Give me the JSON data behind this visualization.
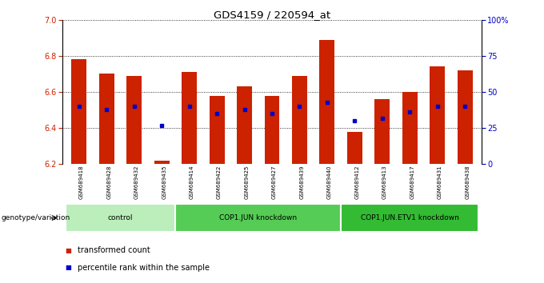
{
  "title": "GDS4159 / 220594_at",
  "samples": [
    "GSM689418",
    "GSM689428",
    "GSM689432",
    "GSM689435",
    "GSM689414",
    "GSM689422",
    "GSM689425",
    "GSM689427",
    "GSM689439",
    "GSM689440",
    "GSM689412",
    "GSM689413",
    "GSM689417",
    "GSM689431",
    "GSM689438"
  ],
  "transformed_count": [
    6.78,
    6.7,
    6.69,
    6.22,
    6.71,
    6.58,
    6.63,
    6.58,
    6.69,
    6.89,
    6.38,
    6.56,
    6.6,
    6.74,
    6.72
  ],
  "percentile_rank": [
    40,
    38,
    40,
    27,
    40,
    35,
    38,
    35,
    40,
    43,
    30,
    32,
    36,
    40,
    40
  ],
  "ylim_left": [
    6.2,
    7.0
  ],
  "ylim_right": [
    0,
    100
  ],
  "y_ticks_left": [
    6.2,
    6.4,
    6.6,
    6.8,
    7.0
  ],
  "y_ticks_right": [
    0,
    25,
    50,
    75,
    100
  ],
  "groups": [
    {
      "label": "control",
      "start": 0,
      "end": 4,
      "color": "#bbeebb"
    },
    {
      "label": "COP1.JUN knockdown",
      "start": 4,
      "end": 10,
      "color": "#55cc55"
    },
    {
      "label": "COP1.JUN.ETV1 knockdown",
      "start": 10,
      "end": 15,
      "color": "#33bb33"
    }
  ],
  "bar_color": "#cc2200",
  "marker_color": "#0000cc",
  "bar_bottom": 6.2,
  "right_axis_color": "#0000cc",
  "genotype_label": "genotype/variation",
  "legend_items": [
    {
      "label": "transformed count",
      "color": "#cc2200"
    },
    {
      "label": "percentile rank within the sample",
      "color": "#0000cc"
    }
  ],
  "background_color": "#ffffff",
  "sample_bg_color": "#cccccc"
}
